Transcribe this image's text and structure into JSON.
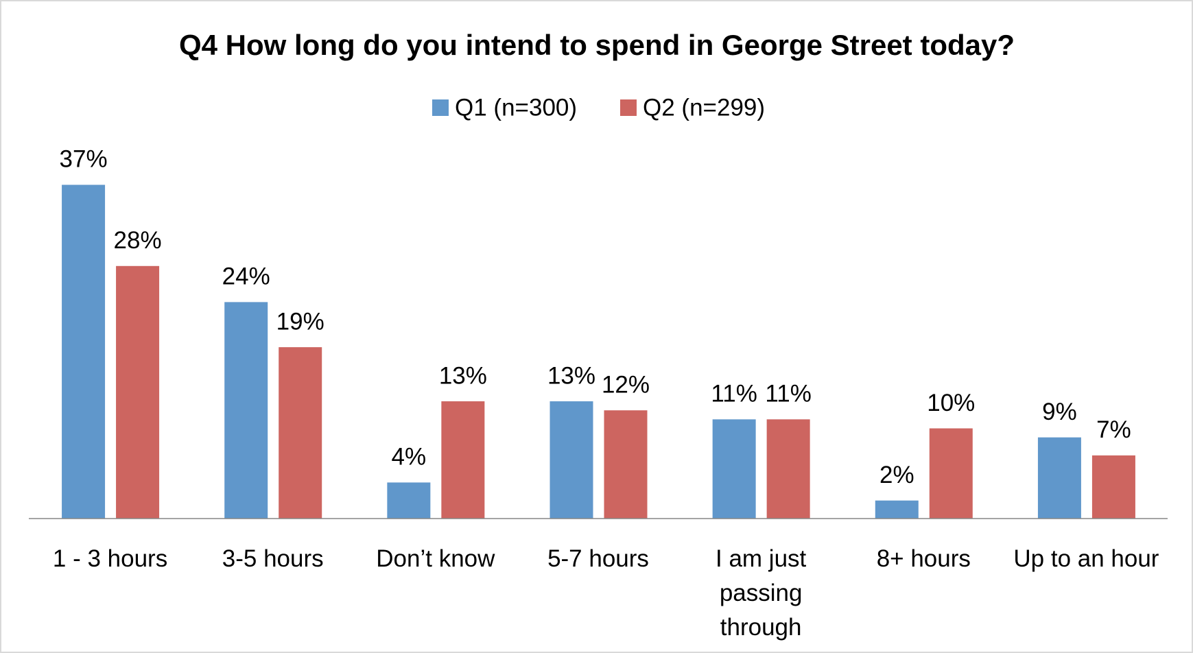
{
  "chart_data": {
    "type": "bar",
    "title": "Q4 How long do you intend to spend in George Street today?",
    "categories": [
      "1 - 3 hours",
      "3-5 hours",
      "Don’t know",
      "5-7 hours",
      "I am just passing through",
      "8+ hours",
      "Up to an hour"
    ],
    "series": [
      {
        "name": "Q1 (n=300)",
        "color": "#6097cb",
        "values": [
          37,
          24,
          4,
          13,
          11,
          2,
          9
        ],
        "value_labels": [
          "37%",
          "24%",
          "4%",
          "13%",
          "11%",
          "2%",
          "9%"
        ]
      },
      {
        "name": "Q2 (n=299)",
        "color": "#cd6560",
        "values": [
          28,
          19,
          13,
          12,
          11,
          10,
          7
        ],
        "value_labels": [
          "28%",
          "19%",
          "13%",
          "12%",
          "11%",
          "10%",
          "7%"
        ]
      }
    ],
    "ylim": [
      0,
      40
    ],
    "legend": "top",
    "grid": false
  }
}
